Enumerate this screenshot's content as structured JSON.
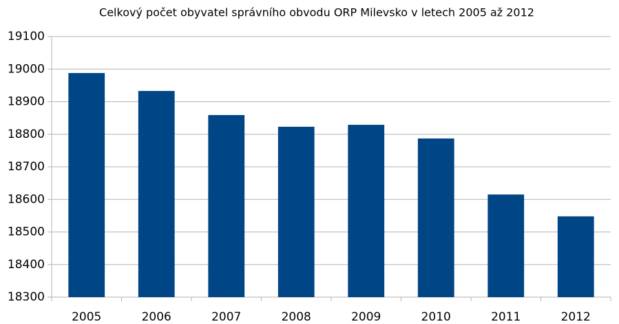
{
  "chart_data": {
    "type": "bar",
    "title": "Celkový počet obyvatel správního obvodu ORP Milevsko v letech 2005 až 2012",
    "categories": [
      "2005",
      "2006",
      "2007",
      "2008",
      "2009",
      "2010",
      "2011",
      "2012"
    ],
    "values": [
      18988,
      18933,
      18859,
      18823,
      18829,
      18787,
      18615,
      18548
    ],
    "color": "#004586",
    "ylim": [
      18300,
      19100
    ],
    "yticks": [
      18300,
      18400,
      18500,
      18600,
      18700,
      18800,
      18900,
      19000,
      19100
    ],
    "grid": true
  }
}
